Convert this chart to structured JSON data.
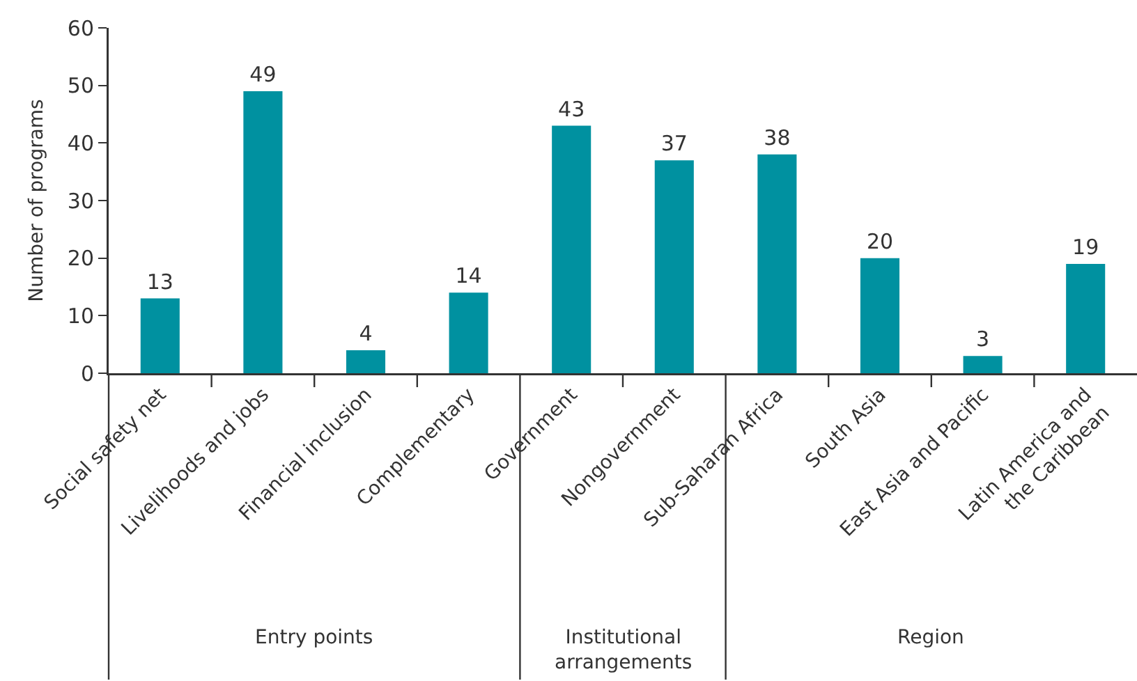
{
  "chart_data": {
    "type": "bar",
    "ylabel": "Number of programs",
    "categories": [
      "Social safety net",
      "Livelihoods and jobs",
      "Financial inclusion",
      "Complementary",
      "Government",
      "Nongovernment",
      "Sub-Saharan Africa",
      "South Asia",
      "East Asia and Pacific",
      "Latin America and the Caribbean"
    ],
    "values": [
      13,
      49,
      4,
      14,
      43,
      37,
      38,
      20,
      3,
      19
    ],
    "color": "#0091a0",
    "ylim": [
      0,
      60
    ],
    "yticks": [
      0,
      10,
      20,
      30,
      40,
      50,
      60
    ],
    "grid": false,
    "data_labels": true,
    "annotations": [
      "Entry points",
      "Institutional arrangements",
      "Region"
    ]
  }
}
